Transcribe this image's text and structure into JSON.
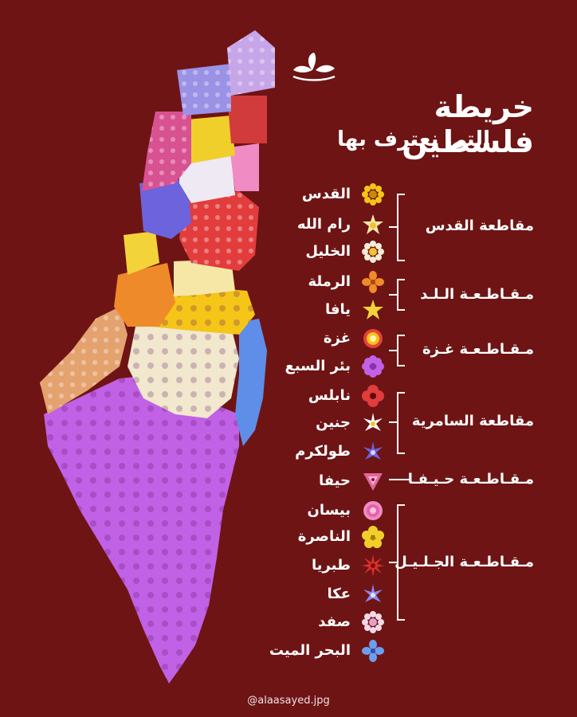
{
  "title": "خريطة فلسطين",
  "subtitle": "التي نعترف بها",
  "credit": "@alaasayed.jpg",
  "colors": {
    "background": "#6e1414",
    "text": "#ffffff"
  },
  "legend": {
    "districts": [
      {
        "name": "مقاطعة القدس",
        "cities": [
          "القدس",
          "رام الله",
          "الخليل"
        ]
      },
      {
        "name": "مـقـاطـعـة الـلـد",
        "cities": [
          "الرملة",
          "يافا"
        ]
      },
      {
        "name": "مـقـاطـعـة غـزة",
        "cities": [
          "غزة",
          "بئر السبع"
        ]
      },
      {
        "name": "مقاطعة السامرية",
        "cities": [
          "نابلس",
          "جنين",
          "طولكرم"
        ]
      },
      {
        "name": "مـقـاطـعـة حـيـفـا",
        "cities": [
          "حيفا"
        ]
      },
      {
        "name": "مـقـاطـعـة الجـلـيـل",
        "cities": [
          "بيسان",
          "الناصرة",
          "طبريا",
          "عكا",
          "صفد"
        ]
      }
    ],
    "extra_city": "البحر الميت",
    "icons": [
      {
        "city": "القدس",
        "icon": "yellow-daisy-icon",
        "color": "#f5c518"
      },
      {
        "city": "رام الله",
        "icon": "cream-star-flower-icon",
        "color": "#f6e7a7"
      },
      {
        "city": "الخليل",
        "icon": "white-daisy-icon",
        "color": "#f4ecd6"
      },
      {
        "city": "الرملة",
        "icon": "orange-four-petal-icon",
        "color": "#f08a2a"
      },
      {
        "city": "يافا",
        "icon": "yellow-star-icon",
        "color": "#f3d33a"
      },
      {
        "city": "غزة",
        "icon": "red-yellow-daisy-icon",
        "color": "#e5423a"
      },
      {
        "city": "بئر السبع",
        "icon": "purple-flower-icon",
        "color": "#c061e6"
      },
      {
        "city": "نابلس",
        "icon": "red-poppy-icon",
        "color": "#e23c3c"
      },
      {
        "city": "جنين",
        "icon": "white-star-flower-icon",
        "color": "#ffffff"
      },
      {
        "city": "طولكرم",
        "icon": "violet-star-flower-icon",
        "color": "#6c63e8"
      },
      {
        "city": "حيفا",
        "icon": "pink-triangle-flower-icon",
        "color": "#e0679c"
      },
      {
        "city": "بيسان",
        "icon": "pink-rose-icon",
        "color": "#f08bc3"
      },
      {
        "city": "الناصرة",
        "icon": "yellow-five-petal-icon",
        "color": "#f1cf2a"
      },
      {
        "city": "طبريا",
        "icon": "red-spiky-flower-icon",
        "color": "#d8302a"
      },
      {
        "city": "عكا",
        "icon": "lavender-star-icon",
        "color": "#8b88f0"
      },
      {
        "city": "صفد",
        "icon": "white-pink-daisy-icon",
        "color": "#f4d8e8"
      },
      {
        "city": "البحر الميت",
        "icon": "blue-four-petal-icon",
        "color": "#6d9df0"
      }
    ]
  },
  "map_regions": [
    {
      "name": "galilee-north",
      "color": "#c6a6e8"
    },
    {
      "name": "galilee-west",
      "color": "#9b92e6"
    },
    {
      "name": "galilee-east",
      "color": "#d23b3b"
    },
    {
      "name": "haifa",
      "color": "#d85292"
    },
    {
      "name": "nazareth",
      "color": "#f1cf2a"
    },
    {
      "name": "baysan",
      "color": "#f08bc3"
    },
    {
      "name": "jenin",
      "color": "#efe9f3"
    },
    {
      "name": "tulkarm",
      "color": "#6d63dc"
    },
    {
      "name": "nablus",
      "color": "#e23c3c"
    },
    {
      "name": "jaffa",
      "color": "#f3d33a"
    },
    {
      "name": "ramla",
      "color": "#ef8a2a"
    },
    {
      "name": "ramallah",
      "color": "#f6e7a7"
    },
    {
      "name": "jerusalem",
      "color": "#f5c518"
    },
    {
      "name": "dead-sea",
      "color": "#5f8ee8"
    },
    {
      "name": "hebron",
      "color": "#f1e8cd"
    },
    {
      "name": "gaza",
      "color": "#e4a26f"
    },
    {
      "name": "beersheba",
      "color": "#c061e6"
    }
  ]
}
